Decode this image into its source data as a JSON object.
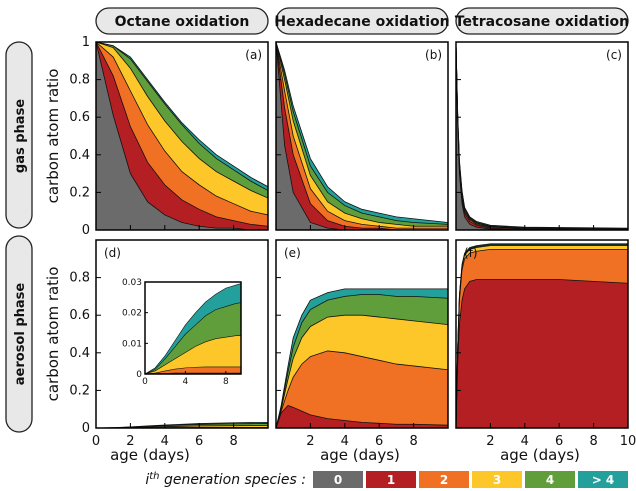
{
  "figure": {
    "columns": [
      "Octane oxidation",
      "Hexadecane oxidation",
      "Tetracosane oxidation"
    ],
    "rows": [
      "gas phase",
      "aerosol phase"
    ],
    "ylabel": "carbon atom ratio",
    "xlabel": "age (days)",
    "legend_title": "i",
    "legend_title_sup": "th",
    "legend_title_rest": " generation species :"
  },
  "colors": {
    "gen0": "#6b6b6b",
    "gen1": "#b41f24",
    "gen2": "#f07024",
    "gen3": "#fdc72a",
    "gen4": "#5f9e3a",
    "gen5plus": "#23a09c"
  },
  "chart_data": {
    "type": "area",
    "series_names": [
      "0",
      "1",
      "2",
      "3",
      "4",
      "> 4"
    ],
    "panels": [
      {
        "label": "(a)",
        "xlim": [
          0,
          10
        ],
        "ylim": [
          0,
          1
        ],
        "yticks": [
          "0",
          "0.2",
          "0.4",
          "0.6",
          "0.8",
          "1"
        ],
        "xticks": [],
        "x": [
          0,
          1,
          2,
          3,
          4,
          5,
          6,
          7,
          8,
          9,
          10
        ],
        "cumulative": [
          [
            1.0,
            0.61,
            0.3,
            0.15,
            0.08,
            0.04,
            0.02,
            0.01,
            0.01,
            0.0,
            0.0
          ],
          [
            1.0,
            0.82,
            0.55,
            0.36,
            0.24,
            0.16,
            0.11,
            0.07,
            0.05,
            0.03,
            0.02
          ],
          [
            1.0,
            0.92,
            0.74,
            0.56,
            0.42,
            0.31,
            0.24,
            0.18,
            0.14,
            0.1,
            0.08
          ],
          [
            1.0,
            0.97,
            0.86,
            0.71,
            0.58,
            0.47,
            0.38,
            0.31,
            0.26,
            0.21,
            0.17
          ],
          [
            1.0,
            0.98,
            0.91,
            0.79,
            0.67,
            0.56,
            0.46,
            0.38,
            0.32,
            0.26,
            0.21
          ],
          [
            1.0,
            0.98,
            0.92,
            0.8,
            0.68,
            0.57,
            0.48,
            0.4,
            0.34,
            0.28,
            0.23
          ]
        ]
      },
      {
        "label": "(b)",
        "xlim": [
          0,
          10
        ],
        "ylim": [
          0,
          1
        ],
        "yticks": [],
        "xticks": [],
        "x": [
          0,
          0.5,
          1,
          2,
          3,
          4,
          5,
          6,
          7,
          8,
          10
        ],
        "cumulative": [
          [
            1.0,
            0.45,
            0.2,
            0.04,
            0.01,
            0.0,
            0.0,
            0.0,
            0.0,
            0.0,
            0.0
          ],
          [
            1.0,
            0.65,
            0.4,
            0.14,
            0.05,
            0.02,
            0.01,
            0.01,
            0.0,
            0.0,
            0.0
          ],
          [
            1.0,
            0.74,
            0.5,
            0.22,
            0.1,
            0.05,
            0.03,
            0.02,
            0.01,
            0.01,
            0.01
          ],
          [
            1.0,
            0.8,
            0.58,
            0.29,
            0.15,
            0.09,
            0.06,
            0.04,
            0.03,
            0.02,
            0.02
          ],
          [
            1.0,
            0.83,
            0.63,
            0.34,
            0.2,
            0.13,
            0.09,
            0.07,
            0.05,
            0.04,
            0.03
          ],
          [
            1.0,
            0.85,
            0.66,
            0.38,
            0.23,
            0.15,
            0.11,
            0.09,
            0.07,
            0.06,
            0.04
          ]
        ]
      },
      {
        "label": "(c)",
        "xlim": [
          0,
          10
        ],
        "ylim": [
          0,
          1
        ],
        "yticks": [],
        "xticks": [],
        "x": [
          0,
          0.1,
          0.2,
          0.35,
          0.5,
          0.8,
          1.2,
          2,
          4,
          10
        ],
        "cumulative": [
          [
            1.0,
            0.55,
            0.3,
            0.14,
            0.07,
            0.03,
            0.015,
            0.005,
            0.0,
            0.0
          ],
          [
            1.0,
            0.57,
            0.32,
            0.16,
            0.09,
            0.045,
            0.025,
            0.01,
            0.005,
            0.0
          ],
          [
            1.0,
            0.59,
            0.34,
            0.18,
            0.1,
            0.055,
            0.03,
            0.015,
            0.008,
            0.005
          ],
          [
            1.0,
            0.6,
            0.35,
            0.19,
            0.11,
            0.06,
            0.035,
            0.018,
            0.01,
            0.006
          ],
          [
            1.0,
            0.61,
            0.36,
            0.2,
            0.12,
            0.065,
            0.04,
            0.02,
            0.012,
            0.008
          ],
          [
            1.0,
            0.62,
            0.37,
            0.21,
            0.12,
            0.07,
            0.045,
            0.025,
            0.015,
            0.01
          ]
        ]
      },
      {
        "label": "(d)",
        "xlim": [
          0,
          10
        ],
        "ylim": [
          0,
          1
        ],
        "yticks": [
          "0",
          "0.2",
          "0.4",
          "0.6",
          "0.8"
        ],
        "xticks": [
          "0",
          "2",
          "4",
          "6",
          "8"
        ],
        "x": [
          0,
          1,
          2,
          3,
          4,
          5,
          6,
          7,
          8,
          9,
          10
        ],
        "cumulative": [
          [
            0.0,
            0.0,
            0.0,
            0.0,
            0.0,
            0.0,
            0.0,
            0.0,
            0.0,
            0.0,
            0.0
          ],
          [
            0.0,
            0.0001,
            0.0002,
            0.0003,
            0.0003,
            0.0003,
            0.0003,
            0.0003,
            0.0003,
            0.0003,
            0.0003
          ],
          [
            0.0,
            0.0003,
            0.001,
            0.0016,
            0.002,
            0.0022,
            0.0023,
            0.0023,
            0.0023,
            0.0023,
            0.0023
          ],
          [
            0.0,
            0.001,
            0.003,
            0.005,
            0.007,
            0.009,
            0.0105,
            0.0115,
            0.012,
            0.0125,
            0.0125
          ],
          [
            0.0,
            0.0015,
            0.005,
            0.009,
            0.013,
            0.016,
            0.019,
            0.021,
            0.022,
            0.023,
            0.0235
          ],
          [
            0.0,
            0.002,
            0.006,
            0.011,
            0.016,
            0.02,
            0.0235,
            0.026,
            0.028,
            0.029,
            0.03
          ]
        ]
      },
      {
        "label": "(e)",
        "xlim": [
          0,
          10
        ],
        "ylim": [
          0,
          1
        ],
        "yticks": [],
        "xticks": [
          "2",
          "4",
          "6",
          "8"
        ],
        "x": [
          0,
          0.3,
          0.7,
          1,
          1.5,
          2,
          3,
          4,
          5,
          6,
          7,
          8,
          10
        ],
        "cumulative": [
          [
            0.0,
            0.0,
            0.0,
            0.0,
            0.0,
            0.0,
            0.0,
            0.0,
            0.0,
            0.0,
            0.0,
            0.0,
            0.0
          ],
          [
            0.0,
            0.08,
            0.12,
            0.11,
            0.09,
            0.07,
            0.05,
            0.04,
            0.03,
            0.025,
            0.02,
            0.02,
            0.015
          ],
          [
            0.0,
            0.09,
            0.2,
            0.27,
            0.34,
            0.38,
            0.41,
            0.4,
            0.38,
            0.36,
            0.34,
            0.33,
            0.31
          ],
          [
            0.0,
            0.1,
            0.26,
            0.37,
            0.48,
            0.54,
            0.59,
            0.6,
            0.6,
            0.59,
            0.58,
            0.57,
            0.55
          ],
          [
            0.0,
            0.11,
            0.3,
            0.43,
            0.56,
            0.63,
            0.68,
            0.7,
            0.71,
            0.71,
            0.7,
            0.7,
            0.69
          ],
          [
            0.0,
            0.12,
            0.33,
            0.48,
            0.6,
            0.68,
            0.72,
            0.74,
            0.74,
            0.74,
            0.74,
            0.74,
            0.74
          ]
        ]
      },
      {
        "label": "(f)",
        "xlim": [
          0,
          10
        ],
        "ylim": [
          0,
          1
        ],
        "yticks": [],
        "xticks": [
          "2",
          "4",
          "6",
          "8",
          "10"
        ],
        "x": [
          0,
          0.1,
          0.2,
          0.35,
          0.5,
          0.8,
          1.2,
          2,
          3,
          4,
          6,
          8,
          10
        ],
        "cumulative": [
          [
            0.0,
            0.0,
            0.0,
            0.0,
            0.0,
            0.0,
            0.0,
            0.0,
            0.0,
            0.0,
            0.0,
            0.0,
            0.0
          ],
          [
            0.0,
            0.35,
            0.55,
            0.68,
            0.74,
            0.78,
            0.79,
            0.79,
            0.79,
            0.79,
            0.79,
            0.78,
            0.77
          ],
          [
            0.0,
            0.42,
            0.68,
            0.84,
            0.9,
            0.93,
            0.94,
            0.95,
            0.95,
            0.95,
            0.95,
            0.95,
            0.95
          ],
          [
            0.0,
            0.43,
            0.7,
            0.86,
            0.92,
            0.95,
            0.96,
            0.97,
            0.97,
            0.97,
            0.97,
            0.97,
            0.97
          ],
          [
            0.0,
            0.435,
            0.705,
            0.865,
            0.925,
            0.955,
            0.965,
            0.975,
            0.975,
            0.975,
            0.975,
            0.975,
            0.975
          ],
          [
            0.0,
            0.44,
            0.71,
            0.87,
            0.93,
            0.96,
            0.97,
            0.98,
            0.98,
            0.98,
            0.98,
            0.98,
            0.98
          ]
        ]
      }
    ],
    "inset": {
      "parent": "(d)",
      "xlim": [
        0,
        9.5
      ],
      "ylim": [
        0,
        0.03
      ],
      "yticks": [
        "0",
        "0.01",
        "0.02",
        "0.03"
      ],
      "xticks": [
        "0",
        "4",
        "8"
      ]
    }
  }
}
